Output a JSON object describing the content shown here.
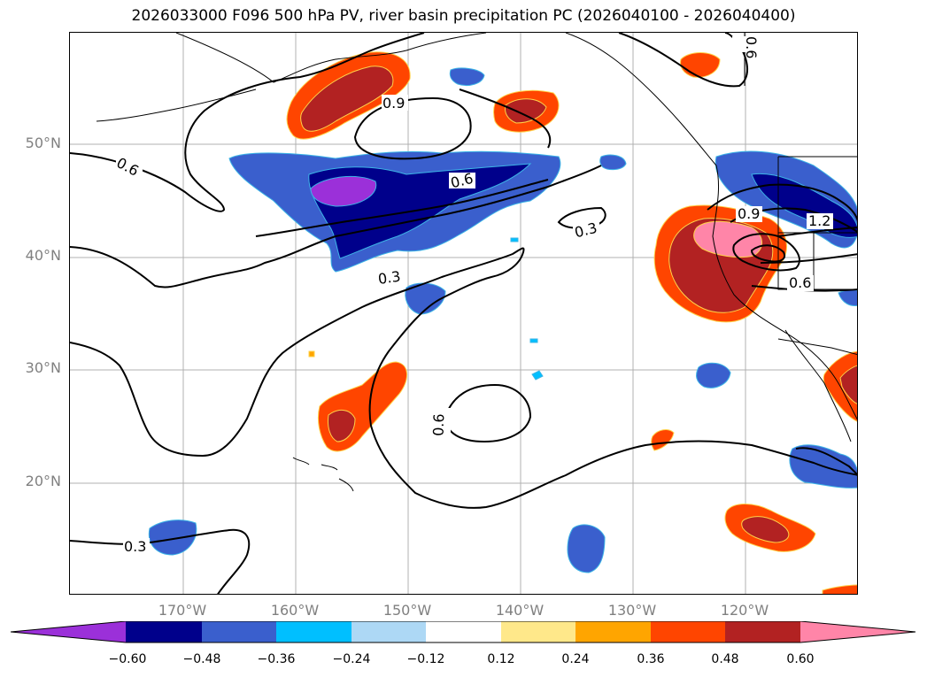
{
  "title": "2026033000 F096 500 hPa PV, river basin precipitation PC (2026040100 - 2026040400)",
  "map": {
    "lat_labels": [
      "50°N",
      "40°N",
      "30°N",
      "20°N"
    ],
    "lon_labels": [
      "170°W",
      "160°W",
      "150°W",
      "140°W",
      "130°W",
      "120°W"
    ],
    "contour_labels": [
      "0.6",
      "0.9",
      "0.6",
      "0.3",
      "0.3",
      "0.9",
      "1.2",
      "0.6",
      "0.6",
      "0.3",
      "0.6"
    ],
    "contour_color": "#000000"
  },
  "colorbar": {
    "ticks": [
      "−0.60",
      "−0.48",
      "−0.36",
      "−0.24",
      "−0.12",
      "0.12",
      "0.24",
      "0.36",
      "0.48",
      "0.60"
    ],
    "colors": [
      "#9b30d9",
      "#00008b",
      "#3a5fcd",
      "#00bfff",
      "#add8f5",
      "#ffffff",
      "#ffe88a",
      "#ffa500",
      "#ff4500",
      "#b22222",
      "#ff85a8"
    ]
  },
  "fields": {
    "neg_colors": [
      "#3a5fcd",
      "#00008b",
      "#9b30d9",
      "#00bfff"
    ],
    "pos_colors": [
      "#ff4500",
      "#b22222",
      "#ff85a8",
      "#ffa500"
    ]
  }
}
